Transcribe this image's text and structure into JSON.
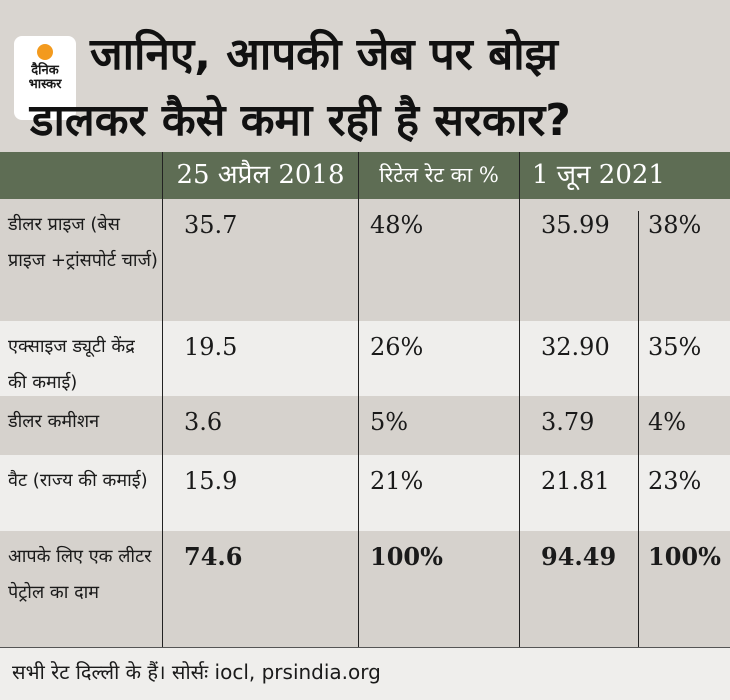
{
  "logo": {
    "line1": "दैनिक",
    "line2": "भास्कर"
  },
  "title": {
    "line1": "जानिए, आपकी जेब पर बोझ",
    "line2": "डालकर कैसे कमा रही है सरकार?"
  },
  "header": [
    "",
    "25 अप्रैल 2018",
    "रिटेल रेट का %",
    "1 जून 2021",
    ""
  ],
  "rows": [
    {
      "label": "डीलर प्राइज (बेस प्राइज +ट्रांसपोर्ट चार्ज)",
      "v2018": "35.7",
      "p2018": "48%",
      "v2021": "35.99",
      "p2021": "38%"
    },
    {
      "label": "एक्साइज ड्यूटी केंद्र की कमाई)",
      "v2018": "19.5",
      "p2018": "26%",
      "v2021": "32.90",
      "p2021": "35%"
    },
    {
      "label": "डीलर कमीशन",
      "v2018": "3.6",
      "p2018": "5%",
      "v2021": "3.79",
      "p2021": "4%"
    },
    {
      "label": "वैट (राज्य की कमाई)",
      "v2018": "15.9",
      "p2018": "21%",
      "v2021": "21.81",
      "p2021": "23%"
    },
    {
      "label": "आपके लिए एक लीटर पेट्रोल का दाम",
      "v2018": "74.6",
      "p2018": "100%",
      "v2021": "94.49",
      "p2021": "100%"
    }
  ],
  "footer": "सभी रेट दिल्ली के हैं।  सोर्सः iocl, prsindia.org",
  "colors": {
    "header_bg": "#5e6d54",
    "logo_sun": "#f39a1e"
  }
}
